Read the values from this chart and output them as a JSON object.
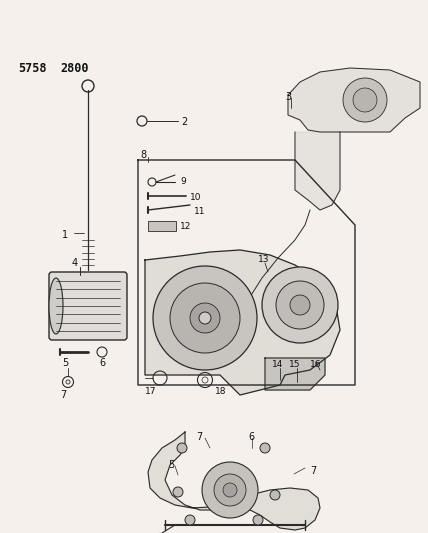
{
  "title1": "5758",
  "title2": "2800",
  "background_color": "#f5f0eb",
  "line_color": "#2a2a2a",
  "text_color": "#111111",
  "figsize": [
    4.28,
    5.33
  ],
  "dpi": 100
}
